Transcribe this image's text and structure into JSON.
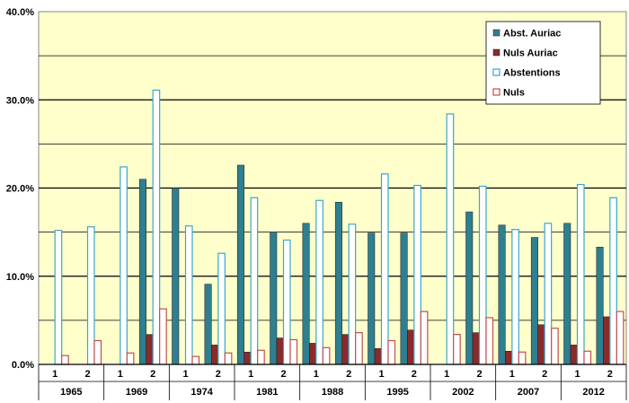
{
  "chart_data": {
    "type": "bar",
    "title": "",
    "xlabel": "",
    "ylabel": "",
    "ylim": [
      0,
      40
    ],
    "y_ticks": [
      "0.0%",
      "10.0%",
      "20.0%",
      "30.0%",
      "40.0%"
    ],
    "y_tick_values": [
      0,
      10,
      20,
      30,
      40
    ],
    "grid": true,
    "legend_position": "top-right",
    "plot_background": "#ffffcc",
    "groups": [
      "1965",
      "1969",
      "1974",
      "1981",
      "1988",
      "1995",
      "2002",
      "2007",
      "2012"
    ],
    "categories": [
      "1",
      "2",
      "1",
      "2",
      "1",
      "2",
      "1",
      "2",
      "1",
      "2",
      "1",
      "2",
      "1",
      "2",
      "1",
      "2",
      "1",
      "2"
    ],
    "series": [
      {
        "name": "Abst. Auriac",
        "style": "filled",
        "color": "#2e7f8f",
        "values": [
          null,
          null,
          null,
          21.0,
          20.0,
          9.1,
          22.6,
          15.0,
          16.0,
          18.4,
          14.9,
          14.9,
          null,
          17.3,
          15.8,
          14.4,
          16.0,
          13.3
        ]
      },
      {
        "name": "Nuls Auriac",
        "style": "filled",
        "color": "#8b2a2a",
        "values": [
          null,
          null,
          null,
          3.4,
          null,
          2.2,
          1.4,
          3.0,
          2.4,
          3.4,
          1.8,
          3.9,
          null,
          3.6,
          1.5,
          4.5,
          2.2,
          5.4
        ]
      },
      {
        "name": "Abstentions",
        "style": "outline",
        "color": "#3aa7c9",
        "values": [
          15.2,
          15.6,
          22.4,
          31.1,
          15.7,
          12.6,
          18.9,
          14.1,
          18.6,
          15.9,
          21.6,
          20.3,
          28.4,
          20.2,
          15.3,
          16.0,
          20.4,
          18.9
        ]
      },
      {
        "name": "Nuls",
        "style": "outline",
        "color": "#c0504d",
        "values": [
          1.0,
          2.7,
          1.3,
          6.3,
          0.9,
          1.3,
          1.6,
          2.8,
          1.9,
          3.6,
          2.7,
          6.0,
          3.4,
          5.3,
          1.4,
          4.1,
          1.5,
          6.0
        ]
      }
    ]
  }
}
